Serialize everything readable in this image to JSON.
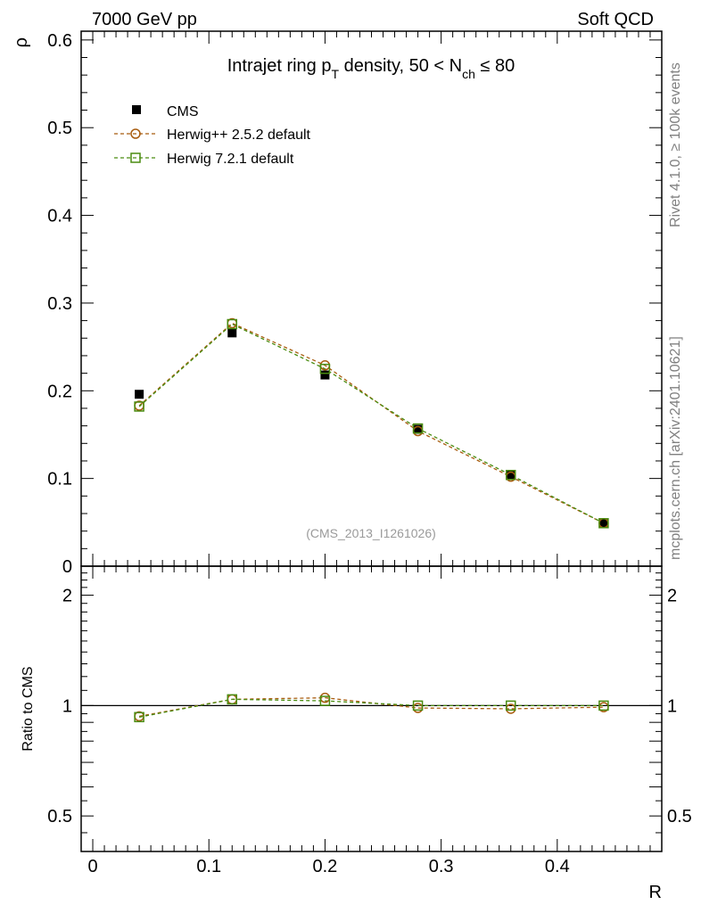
{
  "header": {
    "left": "7000 GeV pp",
    "right": "Soft QCD"
  },
  "side_text": {
    "rivet": "Rivet 4.1.0, ≥ 100k events",
    "mcplots": "mcplots.cern.ch [arXiv:2401.10621]"
  },
  "watermark": "(CMS_2013_I1261026)",
  "colors": {
    "data": "#000000",
    "herwigpp": "#a85c0e",
    "herwig7": "#4a8c10",
    "frame": "#000000",
    "side_text": "#808080"
  },
  "legend": [
    {
      "label": "CMS",
      "marker": "filled-square"
    },
    {
      "label": "Herwig++ 2.5.2 default",
      "marker": "open-circle"
    },
    {
      "label": "Herwig 7.2.1 default",
      "marker": "open-square"
    }
  ],
  "chart_data": [
    {
      "type": "scatter",
      "panel": "main",
      "title": "Intrajet ring p_T density, 50 < N_ch ≤ 80",
      "title_parts": {
        "a": "Intrajet ring p",
        "a_sub": "T",
        "b": " density, 50 < N",
        "b_sub": "ch",
        "c": " ≤ 80"
      },
      "xlabel": "R",
      "ylabel": "ρ",
      "xlim": [
        -0.01,
        0.49
      ],
      "ylim": [
        0,
        0.61
      ],
      "yticks": [
        "0",
        "0.1",
        "0.2",
        "0.3",
        "0.4",
        "0.5",
        "0.6"
      ],
      "yticks_values": [
        0,
        0.1,
        0.2,
        0.3,
        0.4,
        0.5,
        0.6
      ],
      "x": [
        0.04,
        0.12,
        0.2,
        0.28,
        0.36,
        0.44
      ],
      "series": [
        {
          "name": "CMS",
          "values": [
            0.196,
            0.266,
            0.218,
            0.156,
            0.104,
            0.049
          ]
        },
        {
          "name": "Herwig++ 2.5.2 default",
          "values": [
            0.183,
            0.277,
            0.229,
            0.154,
            0.102,
            0.049
          ]
        },
        {
          "name": "Herwig 7.2.1 default",
          "values": [
            0.182,
            0.276,
            0.225,
            0.157,
            0.104,
            0.049
          ]
        }
      ]
    },
    {
      "type": "line",
      "panel": "ratio",
      "xlabel": "R",
      "ylabel": "Ratio to CMS",
      "xlim": [
        -0.01,
        0.49
      ],
      "ylim_log": [
        0.4,
        2.4
      ],
      "xticks": [
        "0",
        "0.1",
        "0.2",
        "0.3",
        "0.4"
      ],
      "xticks_values": [
        0,
        0.1,
        0.2,
        0.3,
        0.4
      ],
      "yticks": [
        "0.5",
        "1",
        "2"
      ],
      "yticks_values": [
        0.5,
        1,
        2
      ],
      "x": [
        0.04,
        0.12,
        0.2,
        0.28,
        0.36,
        0.44
      ],
      "series": [
        {
          "name": "Herwig++ 2.5.2 default",
          "values": [
            0.935,
            1.04,
            1.05,
            0.985,
            0.98,
            0.99
          ]
        },
        {
          "name": "Herwig 7.2.1 default",
          "values": [
            0.93,
            1.04,
            1.03,
            1.0,
            1.0,
            1.0
          ]
        }
      ]
    }
  ]
}
